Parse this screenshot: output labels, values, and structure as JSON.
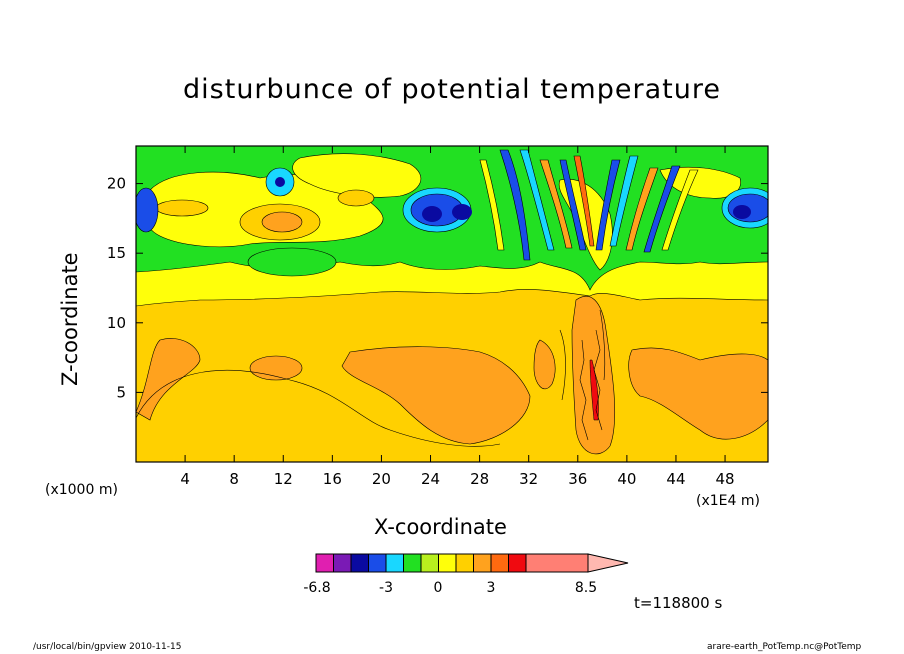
{
  "chart_data": {
    "type": "heatmap",
    "title": "disturbunce of potential temperature",
    "xlabel": "X-coordinate",
    "ylabel": "Z-coordinate",
    "x_unit_left": "(x1000 m)",
    "x_unit_right": "(x1E4 m)",
    "x_range": [
      0,
      51.5
    ],
    "y_range": [
      0,
      22.7
    ],
    "x_ticks": [
      4,
      8,
      12,
      16,
      20,
      24,
      28,
      32,
      36,
      40,
      44,
      48
    ],
    "y_ticks": [
      5,
      10,
      15,
      20
    ],
    "time_label": "t=118800 s",
    "colorbar": {
      "labels": [
        {
          "value": -6.8,
          "text": "-6.8"
        },
        {
          "value": -3,
          "text": "-3"
        },
        {
          "value": 0,
          "text": "0"
        },
        {
          "value": 3,
          "text": "3"
        },
        {
          "value": 8.5,
          "text": "8.5"
        }
      ],
      "colors": [
        "#e01fb0",
        "#7a1ab5",
        "#0a0aa0",
        "#1a4de8",
        "#19d7ff",
        "#22e022",
        "#b8f01e",
        "#ffff0a",
        "#ffd000",
        "#ffa21e",
        "#ff6a10",
        "#f00a10",
        "#ff7f74",
        "#ffb8b0"
      ]
    },
    "regions": [
      {
        "level": "orange",
        "color": "#ffa21e",
        "description": "low layer bands"
      },
      {
        "level": "yellow-orange",
        "color": "#ffd000",
        "description": "background lower"
      },
      {
        "level": "yellow",
        "color": "#ffff0a",
        "description": "middle layer"
      },
      {
        "level": "green",
        "color": "#22e022",
        "description": "upper layer"
      },
      {
        "level": "blue",
        "color": "#1a4de8",
        "description": "upper cells"
      }
    ]
  },
  "footer": {
    "left": "/usr/local/bin/gpview  2010-11-15",
    "right": "arare-earth_PotTemp.nc@PotTemp"
  }
}
